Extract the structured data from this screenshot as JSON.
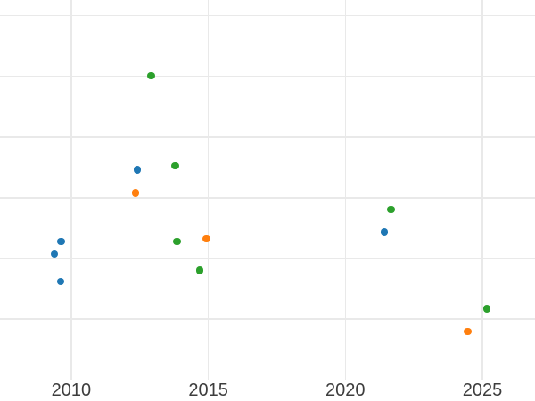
{
  "chart_data": {
    "type": "scatter",
    "title": "",
    "xlabel": "",
    "ylabel": "",
    "grid": true,
    "legend": null,
    "x_ticks": [
      {
        "label": "2010",
        "value": 2010
      },
      {
        "label": "2015",
        "value": 2015
      },
      {
        "label": "2020",
        "value": 2020
      },
      {
        "label": "2025",
        "value": 2025
      }
    ],
    "y_tick_labels_visible": false,
    "y_grid_values": [
      1,
      2,
      3,
      4,
      5,
      6
    ],
    "xlim": [
      2007.4,
      2026.92
    ],
    "ylim": [
      0,
      6.26
    ],
    "marker_size_px": 8.5,
    "colors": {
      "background": "#ffffff",
      "grid": "#e9e9e9",
      "tick_label": "#3d3d3d",
      "series_blue": "#1f77b4",
      "series_orange": "#ff7f0e",
      "series_green": "#2ca02c"
    },
    "series": [
      {
        "name": "series-blue",
        "color": "#1f77b4",
        "points": [
          {
            "x": 2009.39,
            "y": 2.07
          },
          {
            "x": 2009.63,
            "y": 2.28
          },
          {
            "x": 2009.61,
            "y": 1.62
          },
          {
            "x": 2012.41,
            "y": 3.46
          },
          {
            "x": 2021.42,
            "y": 2.43
          }
        ]
      },
      {
        "name": "series-orange",
        "color": "#ff7f0e",
        "points": [
          {
            "x": 2012.34,
            "y": 3.08
          },
          {
            "x": 2014.93,
            "y": 2.32
          },
          {
            "x": 2024.46,
            "y": 0.79
          }
        ]
      },
      {
        "name": "series-green",
        "color": "#2ca02c",
        "points": [
          {
            "x": 2012.91,
            "y": 5.01
          },
          {
            "x": 2013.79,
            "y": 3.53
          },
          {
            "x": 2013.86,
            "y": 2.28
          },
          {
            "x": 2014.69,
            "y": 1.8
          },
          {
            "x": 2021.67,
            "y": 2.81
          },
          {
            "x": 2025.17,
            "y": 1.17
          }
        ]
      }
    ]
  }
}
